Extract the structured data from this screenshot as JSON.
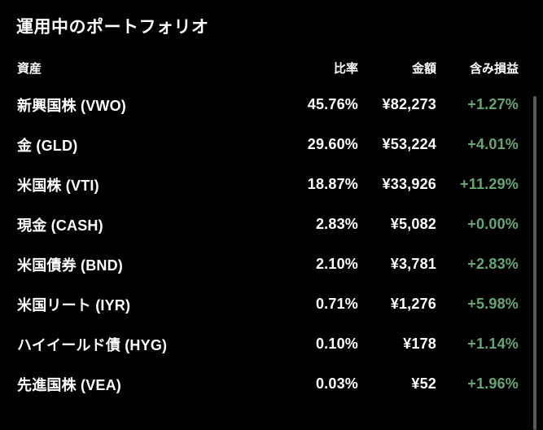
{
  "title": "運用中のポートフォリオ",
  "colors": {
    "background": "#000000",
    "text": "#ffffff",
    "positive_green": "#65a674",
    "scrollbar_gray": "#5a5a5a"
  },
  "table": {
    "headers": {
      "asset": "資産",
      "ratio": "比率",
      "amount": "金額",
      "pl": "含み損益"
    },
    "rows": [
      {
        "name": "新興国株 (VWO)",
        "ratio": "45.76%",
        "amount": "¥82,273",
        "pl": "+1.27%"
      },
      {
        "name": "金 (GLD)",
        "ratio": "29.60%",
        "amount": "¥53,224",
        "pl": "+4.01%"
      },
      {
        "name": "米国株 (VTI)",
        "ratio": "18.87%",
        "amount": "¥33,926",
        "pl": "+11.29%"
      },
      {
        "name": "現金 (CASH)",
        "ratio": "2.83%",
        "amount": "¥5,082",
        "pl": "+0.00%"
      },
      {
        "name": "米国債券 (BND)",
        "ratio": "2.10%",
        "amount": "¥3,781",
        "pl": "+2.83%"
      },
      {
        "name": "米国リート (IYR)",
        "ratio": "0.71%",
        "amount": "¥1,276",
        "pl": "+5.98%"
      },
      {
        "name": "ハイイールド債 (HYG)",
        "ratio": "0.10%",
        "amount": "¥178",
        "pl": "+1.14%"
      },
      {
        "name": "先進国株 (VEA)",
        "ratio": "0.03%",
        "amount": "¥52",
        "pl": "+1.96%"
      }
    ]
  }
}
